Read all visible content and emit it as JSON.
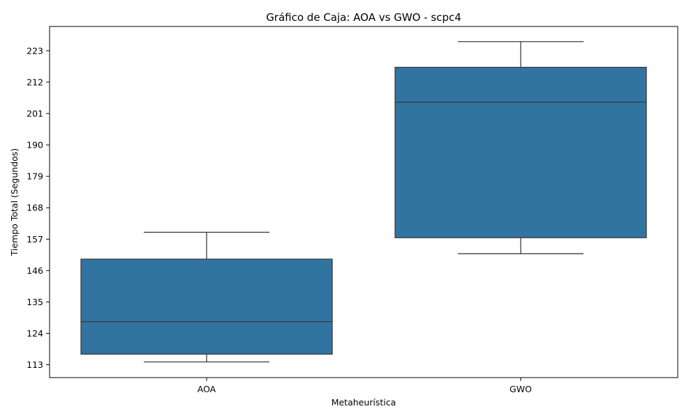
{
  "chart_data": {
    "type": "box",
    "title": "Gráfico de Caja: AOA vs GWO - scpc4",
    "xlabel": "Metaheurística",
    "ylabel": "Tiempo Total (Segundos)",
    "categories": [
      "AOA",
      "GWO"
    ],
    "boxes": [
      {
        "category": "AOA",
        "whisker_low": 114.0,
        "q1": 116.7,
        "median": 128.1,
        "q3": 150.0,
        "whisker_high": 159.4
      },
      {
        "category": "GWO",
        "whisker_low": 151.9,
        "q1": 157.5,
        "median": 205.0,
        "q3": 217.2,
        "whisker_high": 226.2
      }
    ],
    "yticks": [
      113,
      124,
      135,
      146,
      157,
      168,
      179,
      190,
      201,
      212,
      223
    ],
    "ylim": [
      108.5,
      231.5
    ],
    "grid": false,
    "colors": {
      "box_fill": "#3274a1",
      "line": "#3d3d3d",
      "axis": "#000000"
    }
  }
}
